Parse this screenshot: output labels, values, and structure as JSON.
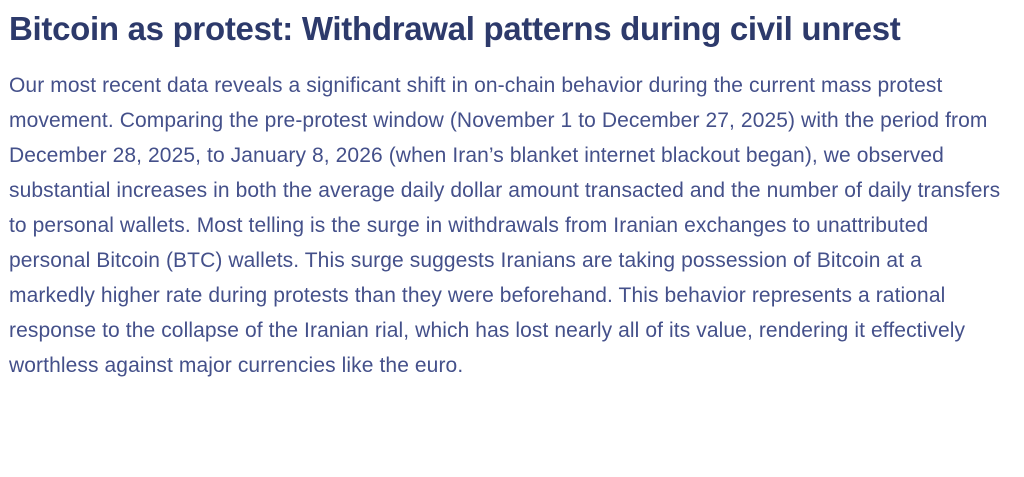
{
  "article": {
    "title": "Bitcoin as protest: Withdrawal patterns during civil unrest",
    "body": "Our most recent data reveals a significant shift in on-chain behavior during the current mass protest movement. Comparing the pre-protest window (November 1 to December 27, 2025) with the period from December 28, 2025, to January 8, 2026 (when Iran’s blanket internet blackout began), we observed substantial increases in both the average daily dollar amount transacted and the number of daily transfers to personal wallets. Most telling is the surge in withdrawals from Iranian exchanges to unattributed personal Bitcoin (BTC) wallets. This surge suggests Iranians are taking possession of Bitcoin at a markedly higher rate during protests than they were beforehand. This behavior represents a rational response to the collapse of the Iranian rial, which has lost nearly all of its value, rendering it effectively worthless against major currencies like the euro."
  },
  "colors": {
    "background": "#ffffff",
    "heading": "#2d3a6b",
    "body_text": "#44508a"
  }
}
